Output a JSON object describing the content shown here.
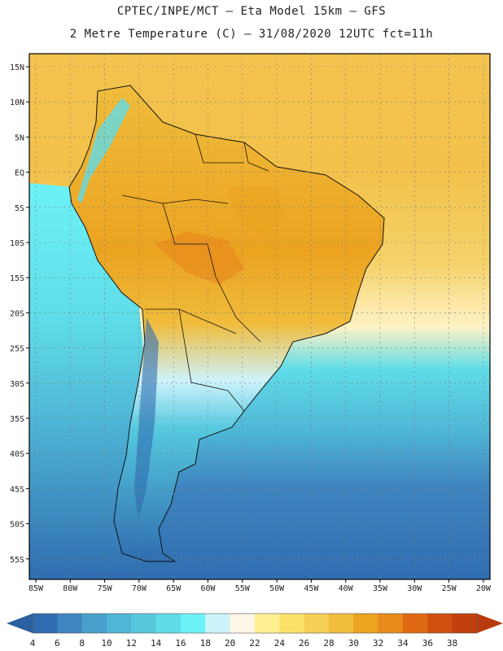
{
  "title": {
    "line1": "CPTEC/INPE/MCT –  Eta Model 15km – GFS",
    "line2": "2 Metre Temperature (C) – 31/08/2020 12UTC fct=11h"
  },
  "map": {
    "lat_labels": [
      "15N",
      "10N",
      "5N",
      "EQ",
      "5S",
      "10S",
      "15S",
      "20S",
      "25S",
      "30S",
      "35S",
      "40S",
      "45S",
      "50S",
      "55S"
    ],
    "lon_labels": [
      "85W",
      "80W",
      "75W",
      "70W",
      "65W",
      "60W",
      "55W",
      "50W",
      "45W",
      "40W",
      "35W",
      "30W",
      "25W",
      "20W"
    ]
  },
  "legend": {
    "labels": [
      "4",
      "6",
      "8",
      "10",
      "12",
      "14",
      "16",
      "18",
      "20",
      "22",
      "24",
      "26",
      "28",
      "30",
      "32",
      "34",
      "36",
      "38"
    ],
    "colors": [
      "#2f6db0",
      "#3f86c1",
      "#47a0cc",
      "#4fb6d6",
      "#56c9df",
      "#5fdce8",
      "#6cf2f6",
      "#cdf3fb",
      "#fff7e6",
      "#fff191",
      "#fbe36b",
      "#f5d054",
      "#f0bc3c",
      "#eba320",
      "#e88a1c",
      "#e06a13",
      "#d1500f",
      "#c2400d"
    ],
    "left_arrow_color": "#2a5fa0",
    "right_arrow_color": "#b93a0c"
  }
}
